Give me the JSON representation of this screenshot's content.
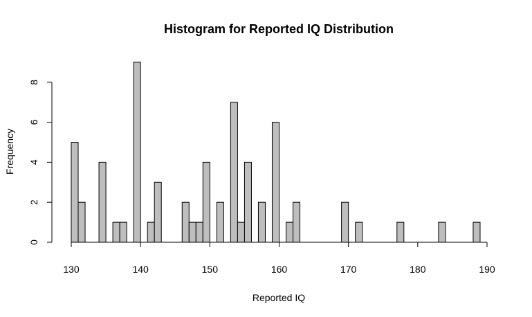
{
  "chart_data": {
    "type": "bar",
    "title": "Histogram for Reported IQ Distribution",
    "xlabel": "Reported IQ",
    "ylabel": "Frequency",
    "xlim": [
      130,
      190
    ],
    "ylim": [
      0,
      9
    ],
    "x_ticks": [
      130,
      140,
      150,
      160,
      170,
      180,
      190
    ],
    "y_ticks": [
      0,
      2,
      4,
      6,
      8
    ],
    "bin_width": 1,
    "bar_color": "#bebebe",
    "bar_edge_color": "#000000",
    "bins": [
      {
        "start": 130,
        "end": 131,
        "count": 5
      },
      {
        "start": 131,
        "end": 132,
        "count": 2
      },
      {
        "start": 134,
        "end": 135,
        "count": 4
      },
      {
        "start": 136,
        "end": 137,
        "count": 1
      },
      {
        "start": 137,
        "end": 138,
        "count": 1
      },
      {
        "start": 139,
        "end": 140,
        "count": 9
      },
      {
        "start": 141,
        "end": 142,
        "count": 1
      },
      {
        "start": 142,
        "end": 143,
        "count": 3
      },
      {
        "start": 146,
        "end": 147,
        "count": 2
      },
      {
        "start": 147,
        "end": 148,
        "count": 1
      },
      {
        "start": 148,
        "end": 149,
        "count": 1
      },
      {
        "start": 149,
        "end": 150,
        "count": 4
      },
      {
        "start": 151,
        "end": 152,
        "count": 2
      },
      {
        "start": 153,
        "end": 154,
        "count": 7
      },
      {
        "start": 154,
        "end": 155,
        "count": 1
      },
      {
        "start": 155,
        "end": 156,
        "count": 4
      },
      {
        "start": 157,
        "end": 158,
        "count": 2
      },
      {
        "start": 159,
        "end": 160,
        "count": 6
      },
      {
        "start": 161,
        "end": 162,
        "count": 1
      },
      {
        "start": 162,
        "end": 163,
        "count": 2
      },
      {
        "start": 169,
        "end": 170,
        "count": 2
      },
      {
        "start": 171,
        "end": 172,
        "count": 1
      },
      {
        "start": 177,
        "end": 178,
        "count": 1
      },
      {
        "start": 183,
        "end": 184,
        "count": 1
      },
      {
        "start": 188,
        "end": 189,
        "count": 1
      }
    ]
  }
}
